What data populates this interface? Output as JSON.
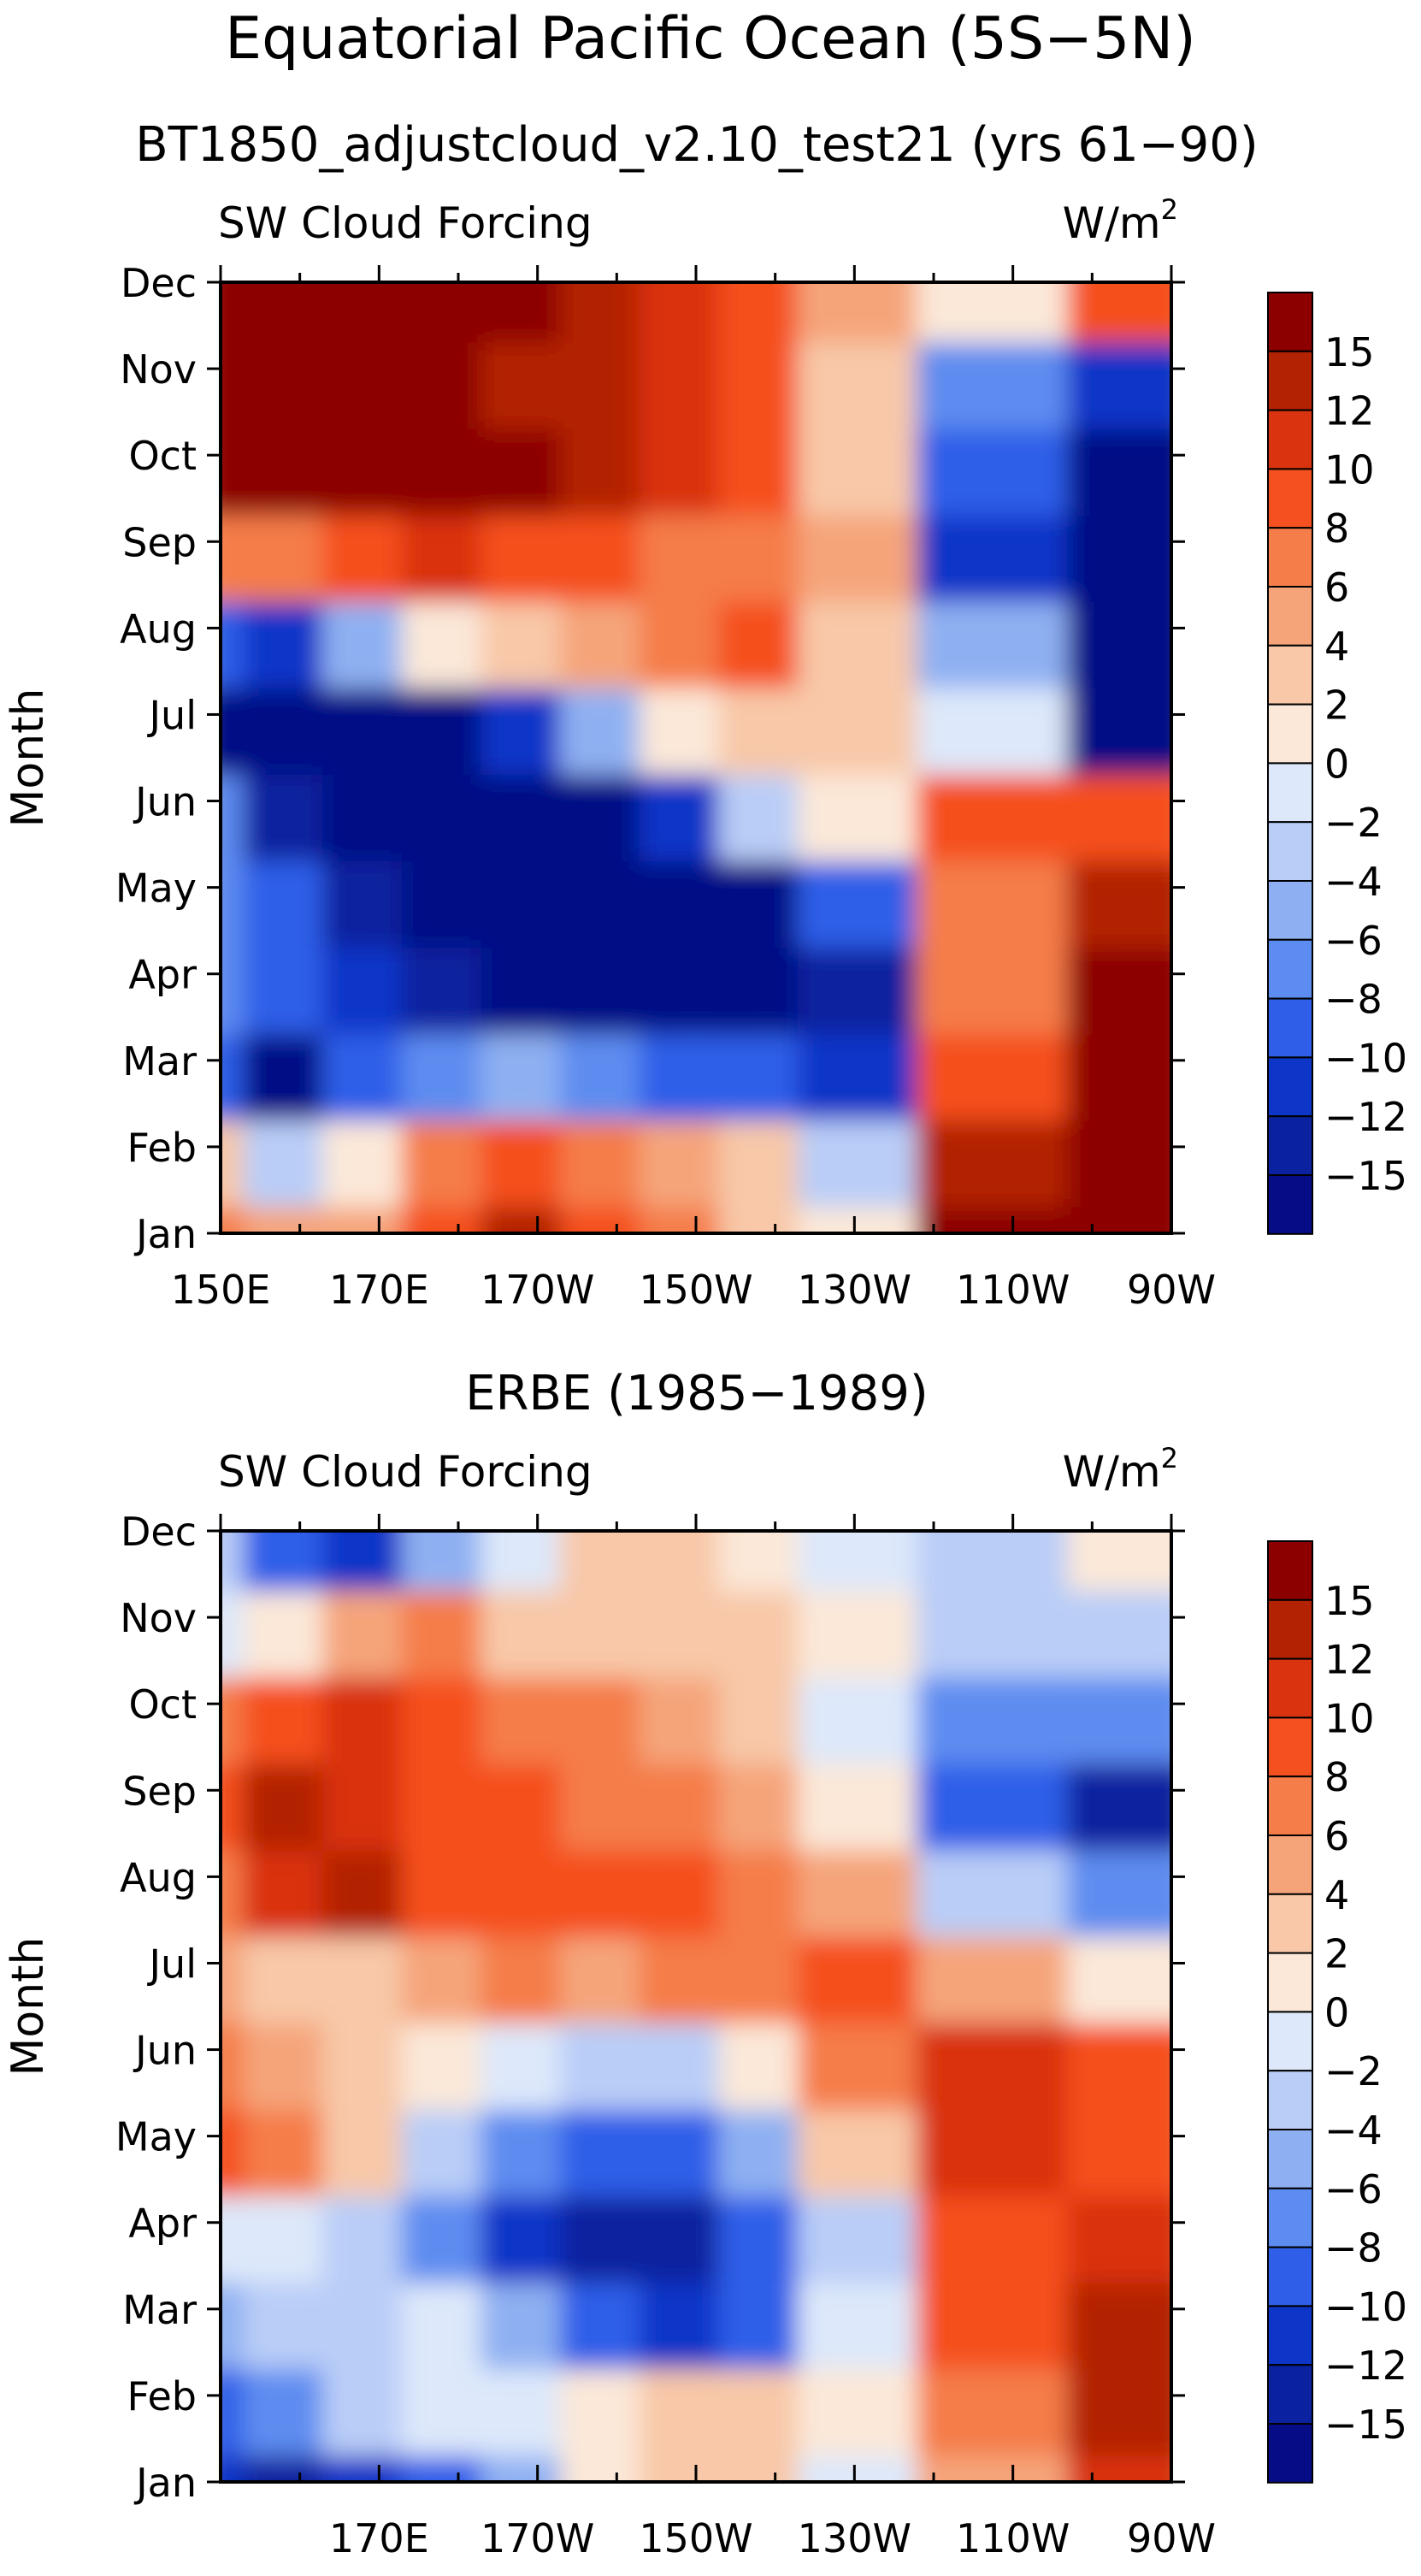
{
  "figure": {
    "title": "Equatorial Pacific Ocean (5S−5N)"
  },
  "colorbar": {
    "levels": [
      -15,
      -12,
      -10,
      -8,
      -6,
      -4,
      -2,
      0,
      2,
      4,
      6,
      8,
      10,
      12,
      15
    ],
    "labels": [
      "15",
      "12",
      "10",
      "8",
      "6",
      "4",
      "2",
      "0",
      "−2",
      "−4",
      "−6",
      "−8",
      "−10",
      "−12",
      "−15"
    ],
    "colors_high_to_low": [
      "#8c0000",
      "#b32203",
      "#d9330f",
      "#f5501f",
      "#f57d4a",
      "#f5a47a",
      "#f8c8a8",
      "#fbe8d8",
      "#dde8fa",
      "#b9cdf7",
      "#8eb0f2",
      "#5d8cf0",
      "#2f5fe8",
      "#0d35c8",
      "#0a229f",
      "#050c85"
    ]
  },
  "chart_data": [
    {
      "type": "heatmap",
      "title": "BT1850_adjustcloud_v2.10_test21 (yrs 61−90)",
      "left_string": "SW Cloud Forcing",
      "right_string": "W/m",
      "right_string_sup": "2",
      "ylabel": "Month",
      "xlabel": "",
      "x": [
        "150E",
        "170E",
        "170W",
        "150W",
        "130W",
        "110W",
        "90W"
      ],
      "x_deg_east": [
        150,
        170,
        190,
        210,
        230,
        250,
        270
      ],
      "xlim_deg_east": [
        150,
        270
      ],
      "xtick_labels": [
        "150E",
        "170E",
        "170W",
        "150W",
        "130W",
        "110W",
        "90W"
      ],
      "y": [
        "Jan",
        "Feb",
        "Mar",
        "Apr",
        "May",
        "Jun",
        "Jul",
        "Aug",
        "Sep",
        "Oct",
        "Nov",
        "Dec"
      ],
      "values": [
        [
          6,
          4,
          4,
          9,
          12,
          9,
          6,
          3,
          0,
          15,
          15
        ],
        [
          2,
          -4,
          0,
          6,
          8,
          7,
          5,
          2,
          -4,
          13,
          15
        ],
        [
          -9,
          -16,
          -10,
          -7,
          -6,
          -8,
          -9,
          -10,
          -12,
          8,
          15
        ],
        [
          -8,
          -10,
          -12,
          -15,
          -16,
          -16,
          -16,
          -16,
          -14,
          6,
          16
        ],
        [
          -7,
          -10,
          -14,
          -16,
          -16,
          -16,
          -16,
          -16,
          -10,
          6,
          14
        ],
        [
          -8,
          -13,
          -16,
          -16,
          -16,
          -16,
          -12,
          -4,
          0,
          8,
          9
        ],
        [
          -16,
          -16,
          -16,
          -16,
          -12,
          -6,
          0,
          2,
          3,
          -2,
          -16
        ],
        [
          -10,
          -12,
          -6,
          0,
          3,
          4,
          6,
          8,
          3,
          -6,
          -16
        ],
        [
          6,
          6,
          8,
          10,
          9,
          8,
          6,
          6,
          4,
          -12,
          -16
        ],
        [
          16,
          16,
          16,
          16,
          15,
          12,
          10,
          8,
          2,
          -10,
          -16
        ],
        [
          16,
          16,
          16,
          16,
          13,
          12,
          10,
          8,
          2,
          -8,
          -12
        ],
        [
          16,
          16,
          16,
          16,
          15,
          12,
          10,
          8,
          4,
          0,
          8
        ]
      ],
      "value_columns_deg_east": [
        150,
        160,
        170,
        180,
        190,
        200,
        210,
        220,
        230,
        250,
        268
      ]
    },
    {
      "type": "heatmap",
      "title": "ERBE (1985−1989)",
      "left_string": "SW Cloud Forcing",
      "right_string": "W/m",
      "right_string_sup": "2",
      "ylabel": "Month",
      "xlabel": "",
      "x": [
        "170E",
        "170W",
        "150W",
        "130W",
        "110W",
        "90W"
      ],
      "x_deg_east": [
        170,
        190,
        210,
        230,
        250,
        270
      ],
      "xlim_deg_east": [
        150,
        270
      ],
      "xtick_labels": [
        "170E",
        "170W",
        "150W",
        "130W",
        "110W",
        "90W"
      ],
      "y": [
        "Jan",
        "Feb",
        "Mar",
        "Apr",
        "May",
        "Jun",
        "Jul",
        "Aug",
        "Sep",
        "Oct",
        "Nov",
        "Dec"
      ],
      "values": [
        [
          -12,
          -14,
          -12,
          -10,
          -6,
          0,
          2,
          2,
          -2,
          4,
          10
        ],
        [
          -10,
          -8,
          -4,
          -2,
          -1,
          1,
          2,
          2,
          0,
          6,
          12
        ],
        [
          -6,
          -4,
          -4,
          -2,
          -6,
          -10,
          -12,
          -10,
          -2,
          8,
          14
        ],
        [
          -2,
          -2,
          -4,
          -8,
          -12,
          -14,
          -14,
          -10,
          -4,
          8,
          10
        ],
        [
          8,
          6,
          2,
          -4,
          -8,
          -10,
          -10,
          -6,
          2,
          10,
          9
        ],
        [
          6,
          4,
          2,
          0,
          -2,
          -4,
          -4,
          0,
          6,
          11,
          8
        ],
        [
          4,
          3,
          3,
          4,
          6,
          5,
          6,
          7,
          8,
          4,
          0
        ],
        [
          6,
          10,
          12,
          9,
          8,
          8,
          8,
          6,
          4,
          -4,
          -8
        ],
        [
          8,
          12,
          10,
          9,
          8,
          7,
          6,
          4,
          0,
          -10,
          -14
        ],
        [
          6,
          8,
          10,
          8,
          6,
          6,
          4,
          2,
          -2,
          -8,
          -8
        ],
        [
          -2,
          0,
          4,
          6,
          3,
          2,
          2,
          2,
          0,
          -4,
          -4
        ],
        [
          -4,
          -10,
          -12,
          -6,
          -2,
          2,
          2,
          0,
          -2,
          -4,
          0
        ]
      ],
      "value_columns_deg_east": [
        150,
        160,
        170,
        180,
        190,
        200,
        210,
        220,
        230,
        250,
        268
      ]
    }
  ]
}
